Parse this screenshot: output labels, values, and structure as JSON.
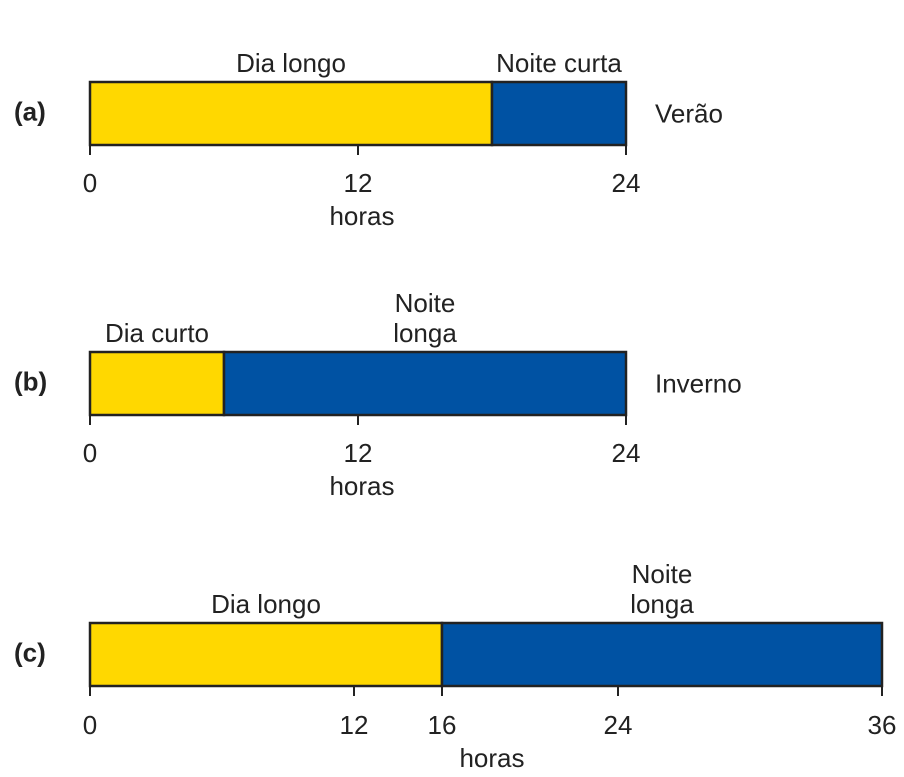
{
  "chart_data": [
    {
      "type": "bar",
      "label": "(a)",
      "season": "Verão",
      "xlabel": "horas",
      "xlim": [
        0,
        24
      ],
      "xticks": [
        0,
        12,
        24
      ],
      "series": [
        {
          "name": "Dia longo",
          "color": "#ffd800",
          "values": [
            18
          ]
        },
        {
          "name": "Noite curta",
          "color": "#0052a3",
          "values": [
            6
          ]
        }
      ]
    },
    {
      "type": "bar",
      "label": "(b)",
      "season": "Inverno",
      "xlabel": "horas",
      "xlim": [
        0,
        24
      ],
      "xticks": [
        0,
        12,
        24
      ],
      "series": [
        {
          "name": "Dia curto",
          "color": "#ffd800",
          "values": [
            6
          ]
        },
        {
          "name": "Noite longa",
          "color": "#0052a3",
          "values": [
            18
          ]
        }
      ]
    },
    {
      "type": "bar",
      "label": "(c)",
      "xlabel": "horas",
      "xlim": [
        0,
        36
      ],
      "xticks": [
        0,
        12,
        16,
        24,
        36
      ],
      "series": [
        {
          "name": "Dia longo",
          "color": "#ffd800",
          "values": [
            16
          ]
        },
        {
          "name": "Noite longa",
          "color": "#0052a3",
          "values": [
            20
          ]
        }
      ]
    }
  ]
}
